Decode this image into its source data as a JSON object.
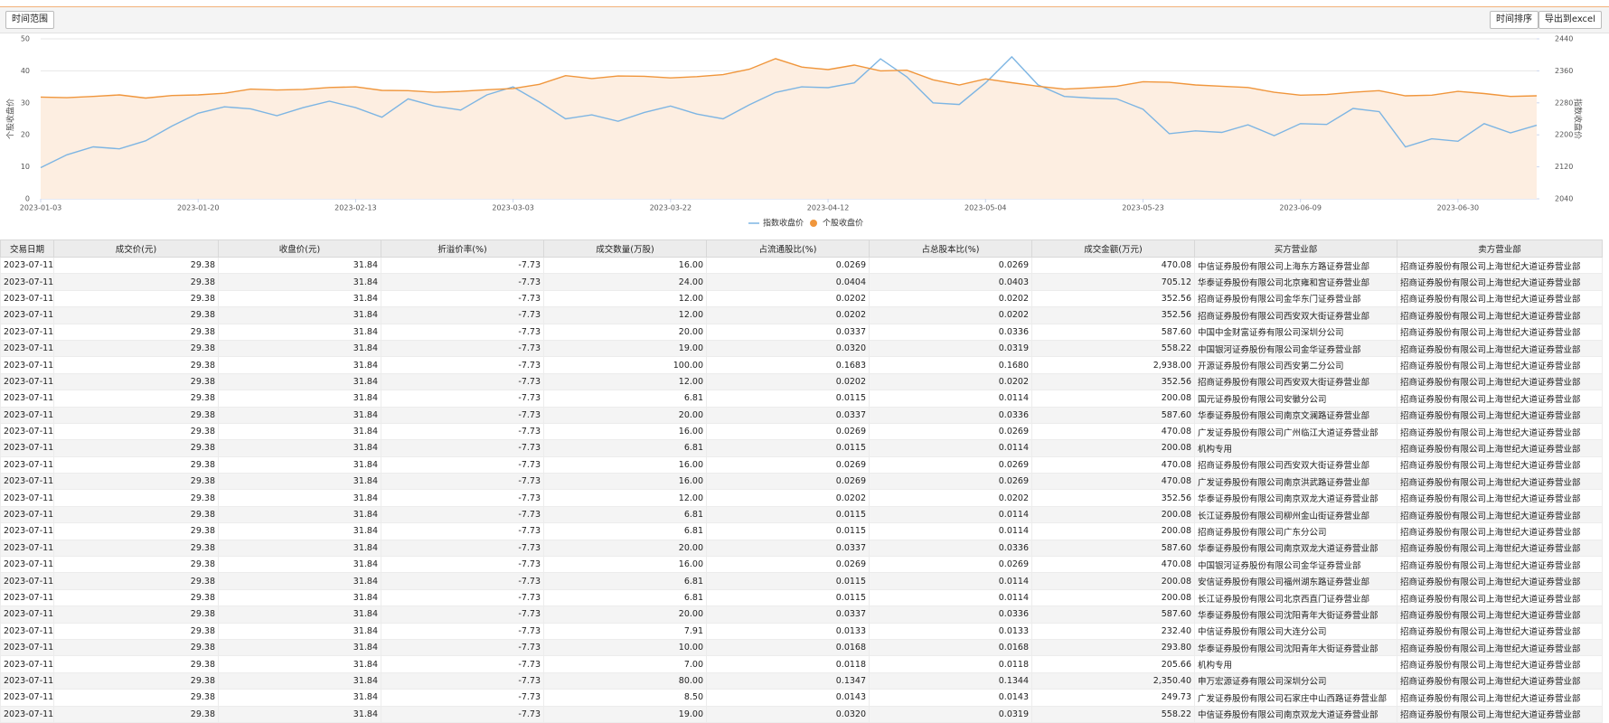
{
  "toolbar": {
    "range_button": "时间范围",
    "sort_button": "时间排序",
    "export_button": "导出到excel"
  },
  "chart_data": {
    "type": "line",
    "y_label": "个股收盘价",
    "y2_label": "指数收盘价",
    "categories": [
      "2023-01-03",
      null,
      null,
      null,
      null,
      null,
      "2023-01-20",
      null,
      null,
      null,
      null,
      null,
      "2023-02-13",
      null,
      null,
      null,
      null,
      null,
      "2023-03-03",
      null,
      null,
      null,
      null,
      null,
      "2023-03-22",
      null,
      null,
      null,
      null,
      null,
      "2023-04-12",
      null,
      null,
      null,
      null,
      null,
      "2023-05-04",
      null,
      null,
      null,
      null,
      null,
      "2023-05-23",
      null,
      null,
      null,
      null,
      null,
      "2023-06-09",
      null,
      null,
      null,
      null,
      null,
      "2023-06-30",
      null,
      null,
      null
    ],
    "ylim": [
      0,
      50
    ],
    "yticks": [
      0,
      10,
      20,
      30,
      40,
      50
    ],
    "y2lim": [
      2040,
      2440
    ],
    "y2ticks": [
      2040,
      2120,
      2200,
      2280,
      2360,
      2440
    ],
    "grid": true,
    "series": [
      {
        "name": "指数收盘价",
        "color": "#7db5e3",
        "axis": "y2",
        "values": [
          2118,
          2150,
          2170,
          2165,
          2185,
          2222,
          2254,
          2270,
          2265,
          2248,
          2268,
          2284,
          2268,
          2244,
          2290,
          2272,
          2262,
          2300,
          2320,
          2282,
          2240,
          2250,
          2234,
          2256,
          2272,
          2252,
          2240,
          2275,
          2306,
          2320,
          2318,
          2330,
          2390,
          2345,
          2280,
          2276,
          2330,
          2395,
          2325,
          2296,
          2292,
          2290,
          2264,
          2203,
          2210,
          2206,
          2225,
          2198,
          2228,
          2226,
          2266,
          2258,
          2170,
          2190,
          2184,
          2228,
          2205,
          2224
        ]
      },
      {
        "name": "个股收盘价",
        "color": "#f0963c",
        "area_color": "#fdeee1",
        "values": [
          31.8,
          31.6,
          32,
          32.5,
          31.5,
          32.3,
          32.5,
          33,
          34.3,
          34,
          34.2,
          34.8,
          35,
          33.9,
          33.8,
          33.3,
          33.6,
          34.1,
          34.5,
          35.8,
          38.5,
          37.6,
          38.4,
          38.3,
          37.8,
          38.2,
          38.8,
          40.5,
          43.8,
          41.2,
          40.4,
          41.8,
          40,
          40.2,
          37.2,
          35.6,
          37.5,
          36.3,
          35.2,
          34.3,
          34.7,
          35.2,
          36.6,
          36.4,
          35.6,
          35.2,
          34.8,
          33.3,
          32.4,
          32.6,
          33.3,
          33.8,
          32.2,
          32.4,
          33.6,
          32.9,
          32,
          32.2
        ]
      }
    ]
  },
  "table": {
    "columns": [
      "交易日期",
      "成交价(元)",
      "收盘价(元)",
      "折溢价率(%)",
      "成交数量(万股)",
      "占流通股比(%)",
      "占总股本比(%)",
      "成交金额(万元)",
      "买方营业部",
      "卖方营业部"
    ],
    "rows": [
      [
        "2023-07-11",
        "29.38",
        "31.84",
        "-7.73",
        "16.00",
        "0.0269",
        "0.0269",
        "470.08",
        "中信证券股份有限公司上海东方路证券营业部",
        "招商证券股份有限公司上海世纪大道证券营业部"
      ],
      [
        "2023-07-11",
        "29.38",
        "31.84",
        "-7.73",
        "24.00",
        "0.0404",
        "0.0403",
        "705.12",
        "华泰证券股份有限公司北京雍和宫证券营业部",
        "招商证券股份有限公司上海世纪大道证券营业部"
      ],
      [
        "2023-07-11",
        "29.38",
        "31.84",
        "-7.73",
        "12.00",
        "0.0202",
        "0.0202",
        "352.56",
        "招商证券股份有限公司金华东门证券营业部",
        "招商证券股份有限公司上海世纪大道证券营业部"
      ],
      [
        "2023-07-11",
        "29.38",
        "31.84",
        "-7.73",
        "12.00",
        "0.0202",
        "0.0202",
        "352.56",
        "招商证券股份有限公司西安双大街证券营业部",
        "招商证券股份有限公司上海世纪大道证券营业部"
      ],
      [
        "2023-07-11",
        "29.38",
        "31.84",
        "-7.73",
        "20.00",
        "0.0337",
        "0.0336",
        "587.60",
        "中国中金财富证券有限公司深圳分公司",
        "招商证券股份有限公司上海世纪大道证券营业部"
      ],
      [
        "2023-07-11",
        "29.38",
        "31.84",
        "-7.73",
        "19.00",
        "0.0320",
        "0.0319",
        "558.22",
        "中国银河证券股份有限公司金华证券营业部",
        "招商证券股份有限公司上海世纪大道证券营业部"
      ],
      [
        "2023-07-11",
        "29.38",
        "31.84",
        "-7.73",
        "100.00",
        "0.1683",
        "0.1680",
        "2,938.00",
        "开源证券股份有限公司西安第二分公司",
        "招商证券股份有限公司上海世纪大道证券营业部"
      ],
      [
        "2023-07-11",
        "29.38",
        "31.84",
        "-7.73",
        "12.00",
        "0.0202",
        "0.0202",
        "352.56",
        "招商证券股份有限公司西安双大街证券营业部",
        "招商证券股份有限公司上海世纪大道证券营业部"
      ],
      [
        "2023-07-11",
        "29.38",
        "31.84",
        "-7.73",
        "6.81",
        "0.0115",
        "0.0114",
        "200.08",
        "国元证券股份有限公司安徽分公司",
        "招商证券股份有限公司上海世纪大道证券营业部"
      ],
      [
        "2023-07-11",
        "29.38",
        "31.84",
        "-7.73",
        "20.00",
        "0.0337",
        "0.0336",
        "587.60",
        "华泰证券股份有限公司南京文澜路证券营业部",
        "招商证券股份有限公司上海世纪大道证券营业部"
      ],
      [
        "2023-07-11",
        "29.38",
        "31.84",
        "-7.73",
        "16.00",
        "0.0269",
        "0.0269",
        "470.08",
        "广发证券股份有限公司广州临江大道证券营业部",
        "招商证券股份有限公司上海世纪大道证券营业部"
      ],
      [
        "2023-07-11",
        "29.38",
        "31.84",
        "-7.73",
        "6.81",
        "0.0115",
        "0.0114",
        "200.08",
        "机构专用",
        "招商证券股份有限公司上海世纪大道证券营业部"
      ],
      [
        "2023-07-11",
        "29.38",
        "31.84",
        "-7.73",
        "16.00",
        "0.0269",
        "0.0269",
        "470.08",
        "招商证券股份有限公司西安双大街证券营业部",
        "招商证券股份有限公司上海世纪大道证券营业部"
      ],
      [
        "2023-07-11",
        "29.38",
        "31.84",
        "-7.73",
        "16.00",
        "0.0269",
        "0.0269",
        "470.08",
        "广发证券股份有限公司南京洪武路证券营业部",
        "招商证券股份有限公司上海世纪大道证券营业部"
      ],
      [
        "2023-07-11",
        "29.38",
        "31.84",
        "-7.73",
        "12.00",
        "0.0202",
        "0.0202",
        "352.56",
        "华泰证券股份有限公司南京双龙大道证券营业部",
        "招商证券股份有限公司上海世纪大道证券营业部"
      ],
      [
        "2023-07-11",
        "29.38",
        "31.84",
        "-7.73",
        "6.81",
        "0.0115",
        "0.0114",
        "200.08",
        "长江证券股份有限公司柳州金山街证券营业部",
        "招商证券股份有限公司上海世纪大道证券营业部"
      ],
      [
        "2023-07-11",
        "29.38",
        "31.84",
        "-7.73",
        "6.81",
        "0.0115",
        "0.0114",
        "200.08",
        "招商证券股份有限公司广东分公司",
        "招商证券股份有限公司上海世纪大道证券营业部"
      ],
      [
        "2023-07-11",
        "29.38",
        "31.84",
        "-7.73",
        "20.00",
        "0.0337",
        "0.0336",
        "587.60",
        "华泰证券股份有限公司南京双龙大道证券营业部",
        "招商证券股份有限公司上海世纪大道证券营业部"
      ],
      [
        "2023-07-11",
        "29.38",
        "31.84",
        "-7.73",
        "16.00",
        "0.0269",
        "0.0269",
        "470.08",
        "中国银河证券股份有限公司金华证券营业部",
        "招商证券股份有限公司上海世纪大道证券营业部"
      ],
      [
        "2023-07-11",
        "29.38",
        "31.84",
        "-7.73",
        "6.81",
        "0.0115",
        "0.0114",
        "200.08",
        "安信证券股份有限公司福州湖东路证券营业部",
        "招商证券股份有限公司上海世纪大道证券营业部"
      ],
      [
        "2023-07-11",
        "29.38",
        "31.84",
        "-7.73",
        "6.81",
        "0.0115",
        "0.0114",
        "200.08",
        "长江证券股份有限公司北京西直门证券营业部",
        "招商证券股份有限公司上海世纪大道证券营业部"
      ],
      [
        "2023-07-11",
        "29.38",
        "31.84",
        "-7.73",
        "20.00",
        "0.0337",
        "0.0336",
        "587.60",
        "华泰证券股份有限公司沈阳青年大街证券营业部",
        "招商证券股份有限公司上海世纪大道证券营业部"
      ],
      [
        "2023-07-11",
        "29.38",
        "31.84",
        "-7.73",
        "7.91",
        "0.0133",
        "0.0133",
        "232.40",
        "中信证券股份有限公司大连分公司",
        "招商证券股份有限公司上海世纪大道证券营业部"
      ],
      [
        "2023-07-11",
        "29.38",
        "31.84",
        "-7.73",
        "10.00",
        "0.0168",
        "0.0168",
        "293.80",
        "华泰证券股份有限公司沈阳青年大街证券营业部",
        "招商证券股份有限公司上海世纪大道证券营业部"
      ],
      [
        "2023-07-11",
        "29.38",
        "31.84",
        "-7.73",
        "7.00",
        "0.0118",
        "0.0118",
        "205.66",
        "机构专用",
        "招商证券股份有限公司上海世纪大道证券营业部"
      ],
      [
        "2023-07-11",
        "29.38",
        "31.84",
        "-7.73",
        "80.00",
        "0.1347",
        "0.1344",
        "2,350.40",
        "申万宏源证券有限公司深圳分公司",
        "招商证券股份有限公司上海世纪大道证券营业部"
      ],
      [
        "2023-07-11",
        "29.38",
        "31.84",
        "-7.73",
        "8.50",
        "0.0143",
        "0.0143",
        "249.73",
        "广发证券股份有限公司石家庄中山西路证券营业部",
        "招商证券股份有限公司上海世纪大道证券营业部"
      ],
      [
        "2023-07-11",
        "29.38",
        "31.84",
        "-7.73",
        "19.00",
        "0.0320",
        "0.0319",
        "558.22",
        "中信证券股份有限公司南京双龙大道证券营业部",
        "招商证券股份有限公司上海世纪大道证券营业部"
      ]
    ]
  }
}
